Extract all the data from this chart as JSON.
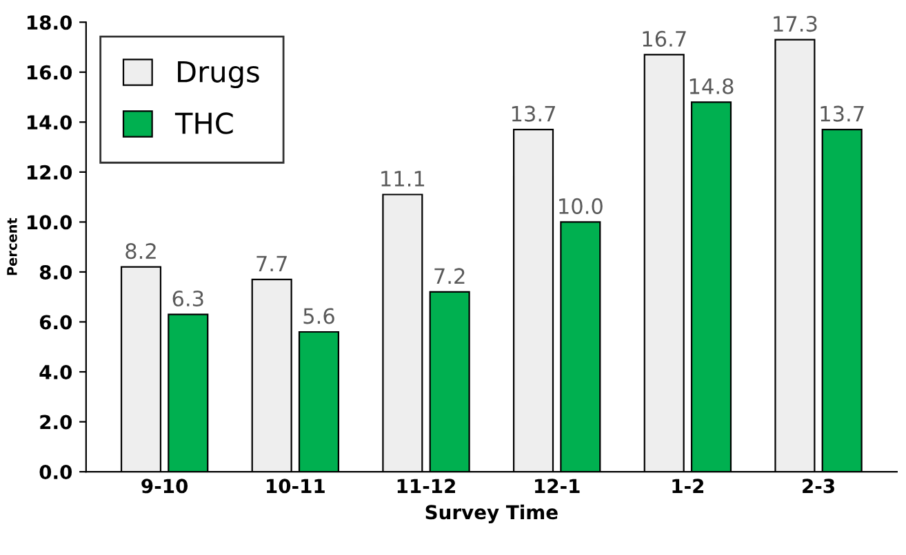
{
  "chart_data": {
    "type": "bar",
    "xlabel": "Survey Time",
    "ylabel": "Percent",
    "categories": [
      "9-10",
      "10-11",
      "11-12",
      "12-1",
      "1-2",
      "2-3"
    ],
    "series": [
      {
        "name": "Drugs",
        "color": "#eeeeee",
        "values": [
          8.2,
          7.7,
          11.1,
          13.7,
          16.7,
          17.3
        ]
      },
      {
        "name": "THC",
        "color": "#00b050",
        "values": [
          6.3,
          5.6,
          7.2,
          10.0,
          14.8,
          13.7
        ]
      }
    ],
    "ylim": [
      0,
      18
    ],
    "yticks": [
      {
        "value": 0,
        "label": "0.0"
      },
      {
        "value": 2,
        "label": "2.0"
      },
      {
        "value": 4,
        "label": "4.0"
      },
      {
        "value": 6,
        "label": "6.0"
      },
      {
        "value": 8,
        "label": "8.0"
      },
      {
        "value": 10,
        "label": "10.0"
      },
      {
        "value": 12,
        "label": "12.0"
      },
      {
        "value": 14,
        "label": "14.0"
      },
      {
        "value": 16,
        "label": "16.0"
      },
      {
        "value": 18,
        "label": "18.0"
      }
    ],
    "value_labels": [
      [
        "8.2",
        "7.7",
        "11.1",
        "13.7",
        "16.7",
        "17.3"
      ],
      [
        "6.3",
        "5.6",
        "7.2",
        "10.0",
        "14.8",
        "13.7"
      ]
    ],
    "grid": false,
    "legend": "top left"
  }
}
